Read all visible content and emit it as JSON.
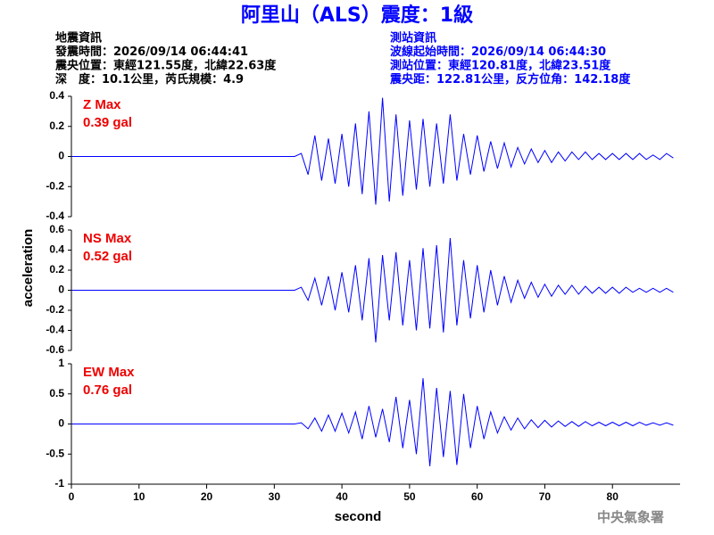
{
  "header": {
    "title": "阿里山（ALS）震度：1級",
    "left": [
      "地震資訊",
      "發震時間：2026/09/14 06:44:41",
      "震央位置：東經121.55度，北緯22.63度",
      "深　度：10.1公里，芮氏規模：4.9"
    ],
    "right": [
      "測站資訊",
      "波線起始時間：2026/09/14 06:44:30",
      "測站位置：東經120.81度，北緯23.51度",
      "震央距：122.81公里，反方位角：142.18度"
    ]
  },
  "chart_data": [
    {
      "type": "line",
      "annotations": [
        "Z Max",
        "0.39 gal"
      ],
      "x": [
        0,
        33,
        34,
        35,
        36,
        37,
        38,
        39,
        40,
        41,
        42,
        43,
        44,
        45,
        46,
        47,
        48,
        49,
        50,
        51,
        52,
        53,
        54,
        55,
        56,
        57,
        58,
        59,
        60,
        61,
        62,
        63,
        64,
        65,
        66,
        67,
        68,
        69,
        70,
        71,
        72,
        73,
        74,
        75,
        76,
        77,
        78,
        79,
        80,
        81,
        82,
        83,
        84,
        85,
        86,
        87,
        88,
        89
      ],
      "series": [
        {
          "color": "#0000ff",
          "values": [
            0,
            0,
            0.02,
            -0.12,
            0.14,
            -0.16,
            0.12,
            -0.18,
            0.15,
            -0.2,
            0.22,
            -0.25,
            0.3,
            -0.32,
            0.39,
            -0.3,
            0.28,
            -0.26,
            0.24,
            -0.22,
            0.25,
            -0.2,
            0.22,
            -0.18,
            0.28,
            -0.16,
            0.15,
            -0.12,
            0.14,
            -0.1,
            0.1,
            -0.08,
            0.09,
            -0.07,
            0.06,
            -0.05,
            0.05,
            -0.04,
            0.04,
            -0.04,
            0.03,
            -0.03,
            0.03,
            -0.02,
            0.03,
            -0.02,
            0.02,
            -0.02,
            0.02,
            -0.02,
            0.02,
            -0.02,
            0.02,
            -0.02,
            0.01,
            -0.02,
            0.02,
            -0.01
          ]
        }
      ],
      "xlim": [
        0,
        90
      ],
      "ylim": [
        -0.4,
        0.4
      ],
      "yticks": [
        0.4,
        0.2,
        0,
        -0.2,
        -0.4
      ]
    },
    {
      "type": "line",
      "annotations": [
        "NS Max",
        "0.52 gal"
      ],
      "ylabel": "acceleration",
      "x": [
        0,
        33,
        34,
        35,
        36,
        37,
        38,
        39,
        40,
        41,
        42,
        43,
        44,
        45,
        46,
        47,
        48,
        49,
        50,
        51,
        52,
        53,
        54,
        55,
        56,
        57,
        58,
        59,
        60,
        61,
        62,
        63,
        64,
        65,
        66,
        67,
        68,
        69,
        70,
        71,
        72,
        73,
        74,
        75,
        76,
        77,
        78,
        79,
        80,
        81,
        82,
        83,
        84,
        85,
        86,
        87,
        88,
        89
      ],
      "series": [
        {
          "color": "#0000ff",
          "values": [
            0,
            0,
            0.03,
            -0.1,
            0.12,
            -0.15,
            0.14,
            -0.2,
            0.18,
            -0.22,
            0.25,
            -0.3,
            0.32,
            -0.52,
            0.35,
            -0.3,
            0.38,
            -0.35,
            0.3,
            -0.4,
            0.42,
            -0.38,
            0.45,
            -0.42,
            0.52,
            -0.35,
            0.3,
            -0.28,
            0.25,
            -0.22,
            0.2,
            -0.15,
            0.14,
            -0.12,
            0.1,
            -0.08,
            0.08,
            -0.07,
            0.06,
            -0.06,
            0.05,
            -0.04,
            0.05,
            -0.04,
            0.04,
            -0.03,
            0.03,
            -0.03,
            0.03,
            -0.03,
            0.03,
            -0.02,
            0.02,
            -0.02,
            0.02,
            -0.02,
            0.02,
            -0.02
          ]
        }
      ],
      "xlim": [
        0,
        90
      ],
      "ylim": [
        -0.6,
        0.6
      ],
      "yticks": [
        0.6,
        0.4,
        0.2,
        0,
        -0.2,
        -0.4,
        -0.6
      ]
    },
    {
      "type": "line",
      "annotations": [
        "EW Max",
        "0.76 gal"
      ],
      "xlabel": "second",
      "x": [
        0,
        33,
        34,
        35,
        36,
        37,
        38,
        39,
        40,
        41,
        42,
        43,
        44,
        45,
        46,
        47,
        48,
        49,
        50,
        51,
        52,
        53,
        54,
        55,
        56,
        57,
        58,
        59,
        60,
        61,
        62,
        63,
        64,
        65,
        66,
        67,
        68,
        69,
        70,
        71,
        72,
        73,
        74,
        75,
        76,
        77,
        78,
        79,
        80,
        81,
        82,
        83,
        84,
        85,
        86,
        87,
        88,
        89
      ],
      "series": [
        {
          "color": "#0000ff",
          "values": [
            0,
            0,
            0.02,
            -0.08,
            0.1,
            -0.12,
            0.15,
            -0.12,
            0.18,
            -0.15,
            0.2,
            -0.25,
            0.3,
            -0.22,
            0.25,
            -0.3,
            0.45,
            -0.4,
            0.4,
            -0.5,
            0.76,
            -0.7,
            0.6,
            -0.55,
            0.55,
            -0.68,
            0.5,
            -0.4,
            0.3,
            -0.25,
            0.2,
            -0.15,
            0.12,
            -0.1,
            0.1,
            -0.08,
            0.07,
            -0.06,
            0.06,
            -0.05,
            0.05,
            -0.04,
            0.04,
            -0.04,
            0.04,
            -0.03,
            0.03,
            -0.03,
            0.03,
            -0.03,
            0.03,
            -0.03,
            0.03,
            -0.02,
            0.02,
            -0.02,
            0.02,
            -0.02
          ]
        }
      ],
      "xlim": [
        0,
        90
      ],
      "ylim": [
        -1,
        1
      ],
      "yticks": [
        1,
        0.5,
        0,
        -0.5,
        -1
      ],
      "xticks": [
        0,
        10,
        20,
        30,
        40,
        50,
        60,
        70,
        80
      ]
    }
  ],
  "footer": "中央氣象署"
}
